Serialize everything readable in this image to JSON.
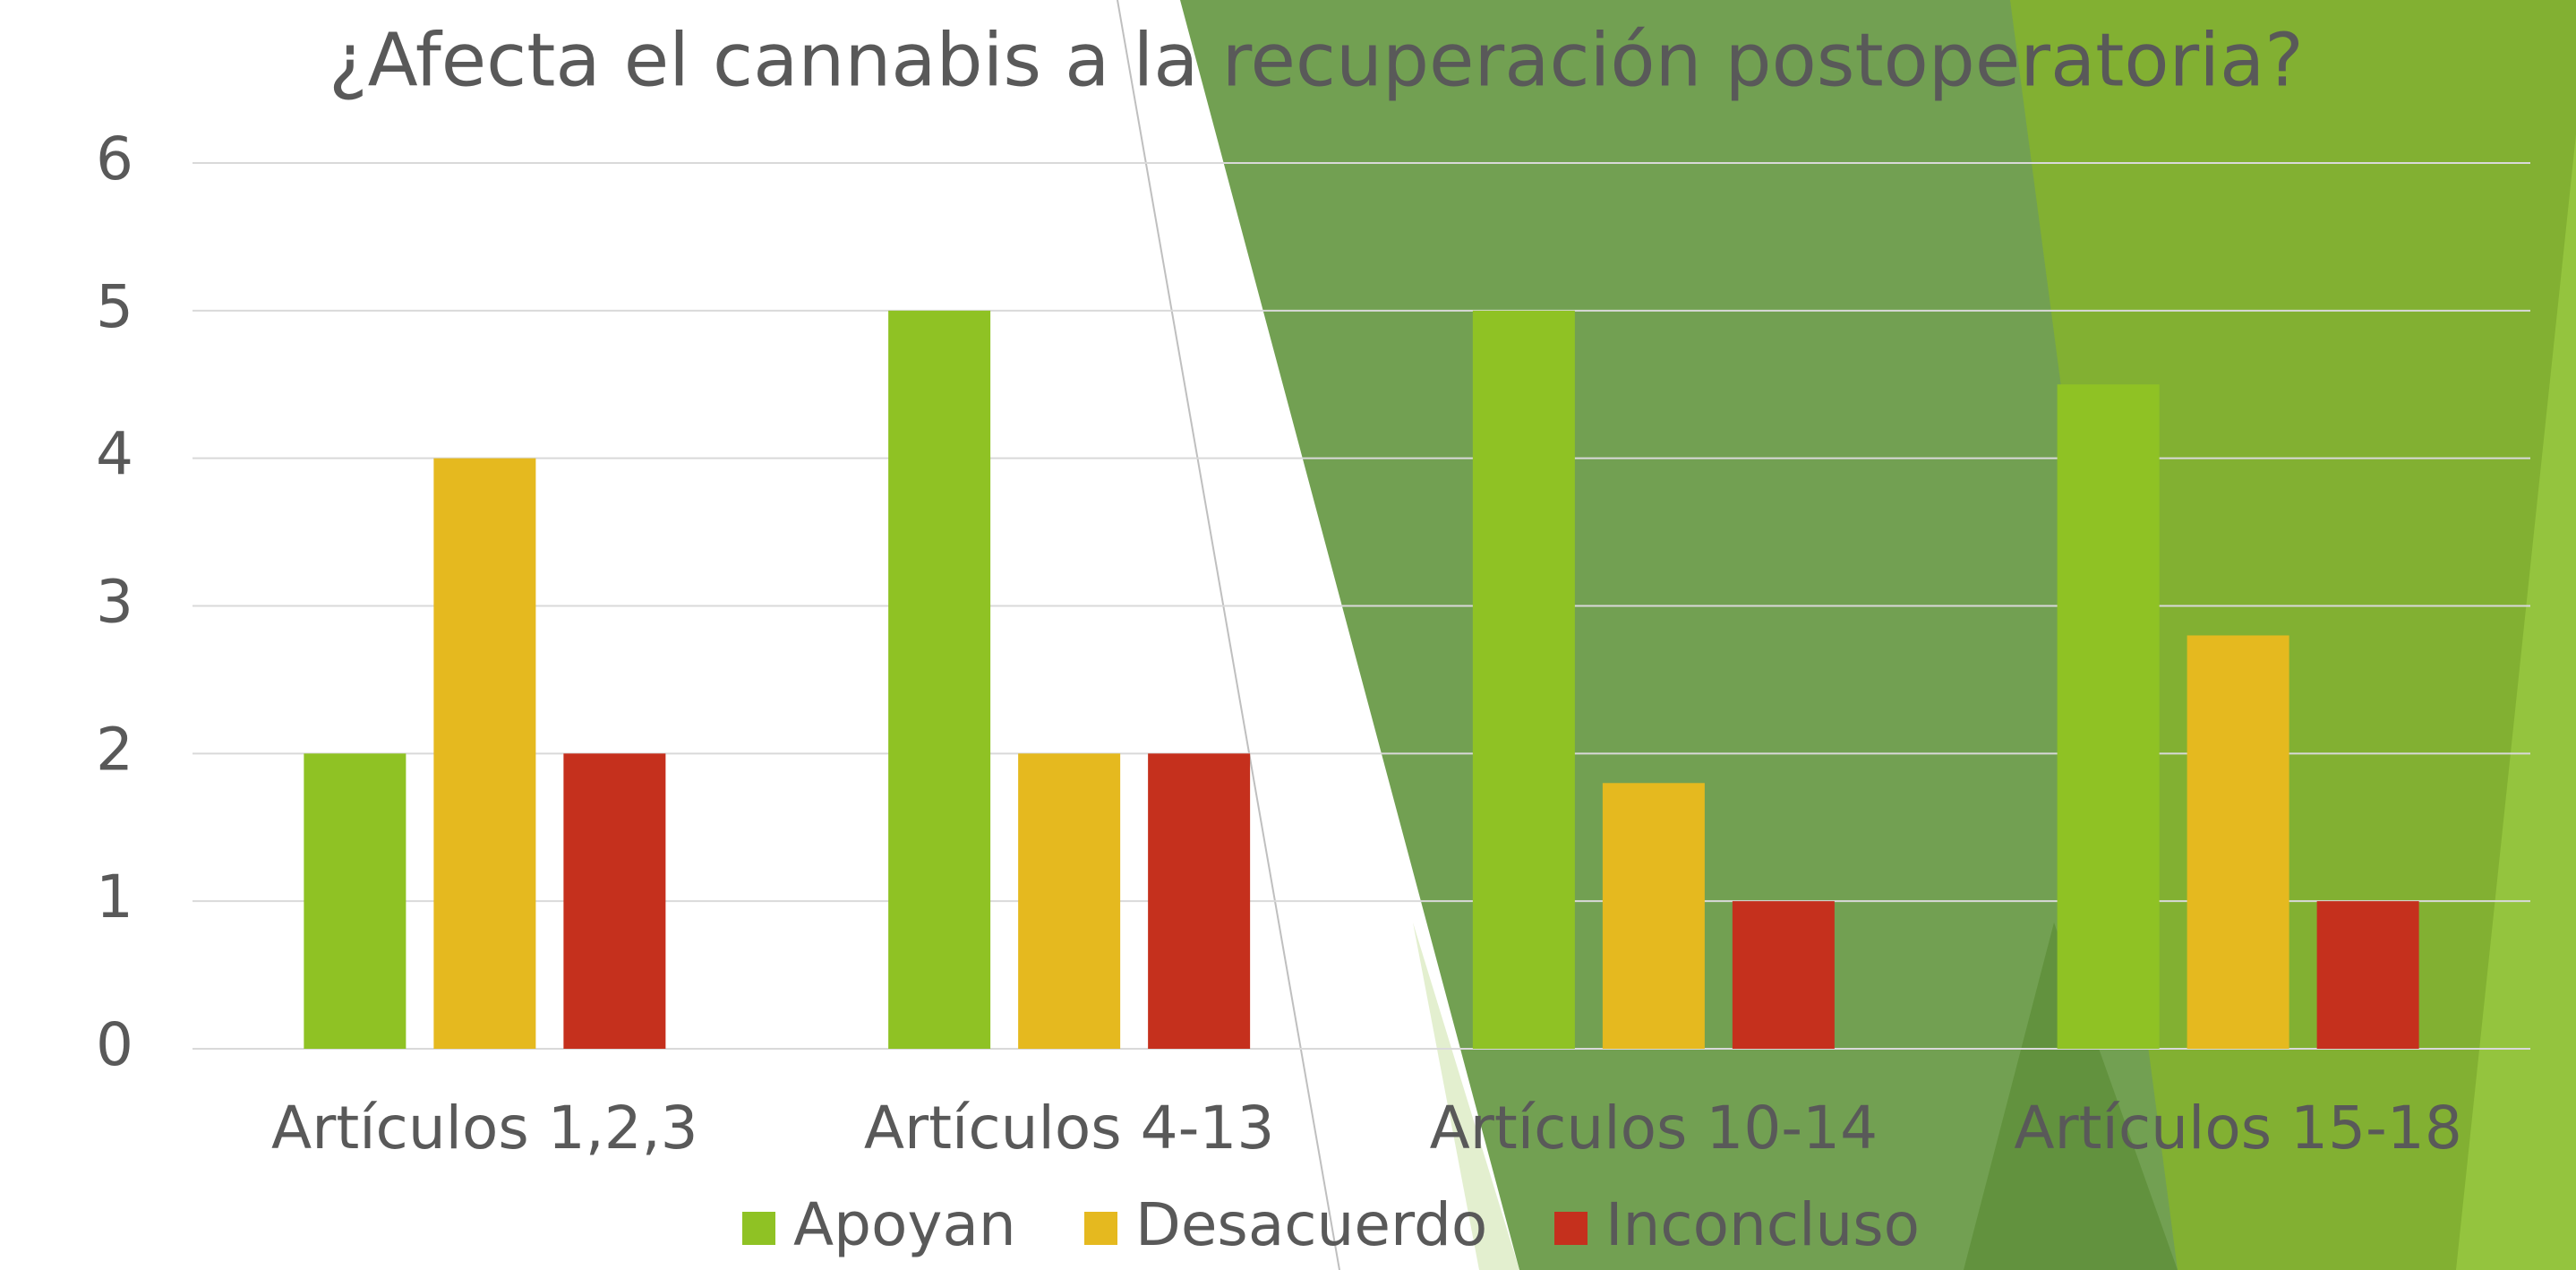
{
  "chart_data": {
    "type": "bar",
    "title": "¿Afecta el cannabis a la recuperación postoperatoria?",
    "categories": [
      "Artículos 1,2,3",
      "Artículos 4-13",
      "Artículos 10-14",
      "Artículos 15-18"
    ],
    "series": [
      {
        "name": "Apoyan",
        "color": "#8fc224",
        "values": [
          2,
          5,
          5,
          4.5
        ]
      },
      {
        "name": "Desacuerdo",
        "color": "#e5b91f",
        "values": [
          4,
          2,
          1.8,
          2.8
        ]
      },
      {
        "name": "Inconcluso",
        "color": "#c5301d",
        "values": [
          2,
          2,
          1,
          1
        ]
      }
    ],
    "ylim": [
      0,
      6
    ],
    "yticks": [
      0,
      1,
      2,
      3,
      4,
      5,
      6
    ],
    "grid": true,
    "legend": "bottom"
  }
}
